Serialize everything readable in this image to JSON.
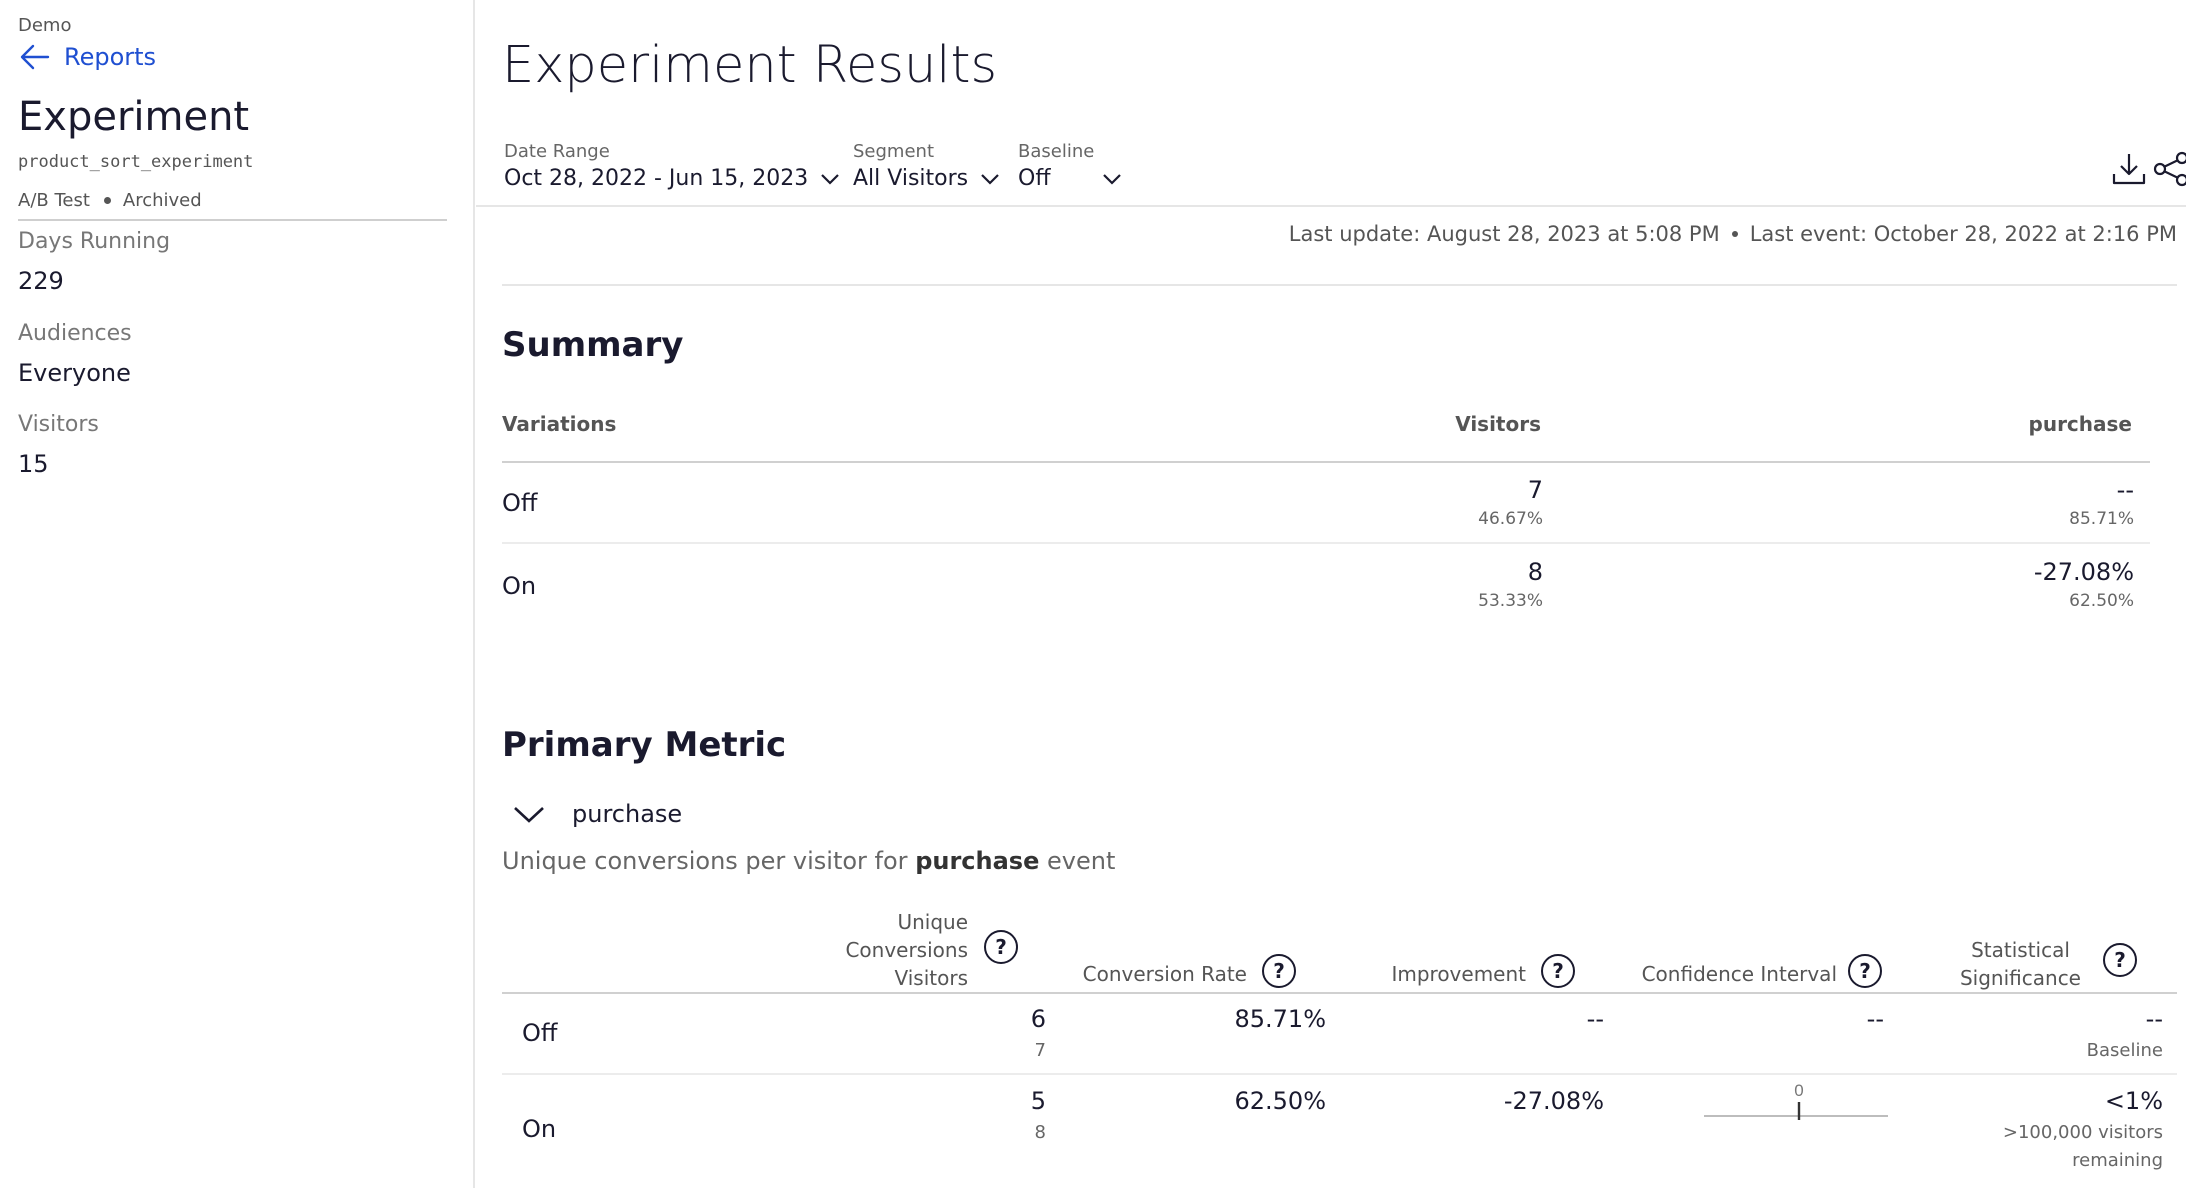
{
  "sidebar": {
    "org": "Demo",
    "back_label": "Reports",
    "title": "Experiment",
    "experiment_key": "product_sort_experiment",
    "type": "A/B Test",
    "status": "Archived",
    "stats": [
      {
        "label": "Days Running",
        "value": "229"
      },
      {
        "label": "Audiences",
        "value": "Everyone"
      },
      {
        "label": "Visitors",
        "value": "15"
      }
    ]
  },
  "header": {
    "title": "Experiment Results",
    "filters": [
      {
        "label": "Date Range",
        "value": "Oct 28, 2022 - Jun 15, 2023"
      },
      {
        "label": "Segment",
        "value": "All Visitors"
      },
      {
        "label": "Baseline",
        "value": "Off"
      }
    ],
    "icons": [
      "download-icon",
      "share-icon"
    ],
    "last_update": "Last update: August 28, 2023 at 5:08 PM",
    "last_event": "Last event: October 28, 2022 at 2:16 PM"
  },
  "summary": {
    "title": "Summary",
    "columns": [
      "Variations",
      "Visitors",
      "purchase"
    ],
    "rows": [
      {
        "variation": "Off",
        "visitors": "7",
        "visitors_pct": "46.67%",
        "metric": "--",
        "metric_sub": "85.71%"
      },
      {
        "variation": "On",
        "visitors": "8",
        "visitors_pct": "53.33%",
        "metric": "-27.08%",
        "metric_sub": "62.50%"
      }
    ]
  },
  "primary_metric": {
    "title": "Primary Metric",
    "metric_name": "purchase",
    "description_prefix": "Unique conversions per visitor for",
    "description_event": "purchase",
    "description_suffix": "event",
    "columns": {
      "conversions_line1": "Unique",
      "conversions_line2": "Conversions",
      "conversions_line3": "Visitors",
      "conversion_rate": "Conversion Rate",
      "improvement": "Improvement",
      "confidence_interval": "Confidence Interval",
      "significance_line1": "Statistical",
      "significance_line2": "Significance"
    },
    "rows": [
      {
        "variation": "Off",
        "conversions": "6",
        "visitors": "7",
        "rate": "85.71%",
        "improvement": "--",
        "ci": "--",
        "significance": "--",
        "significance_sub": "Baseline"
      },
      {
        "variation": "On",
        "conversions": "5",
        "visitors": "8",
        "rate": "62.50%",
        "improvement": "-27.08%",
        "ci_zero_label": "0",
        "significance": "<1%",
        "significance_sub_line1": ">100,000 visitors",
        "significance_sub_line2": "remaining"
      }
    ]
  }
}
